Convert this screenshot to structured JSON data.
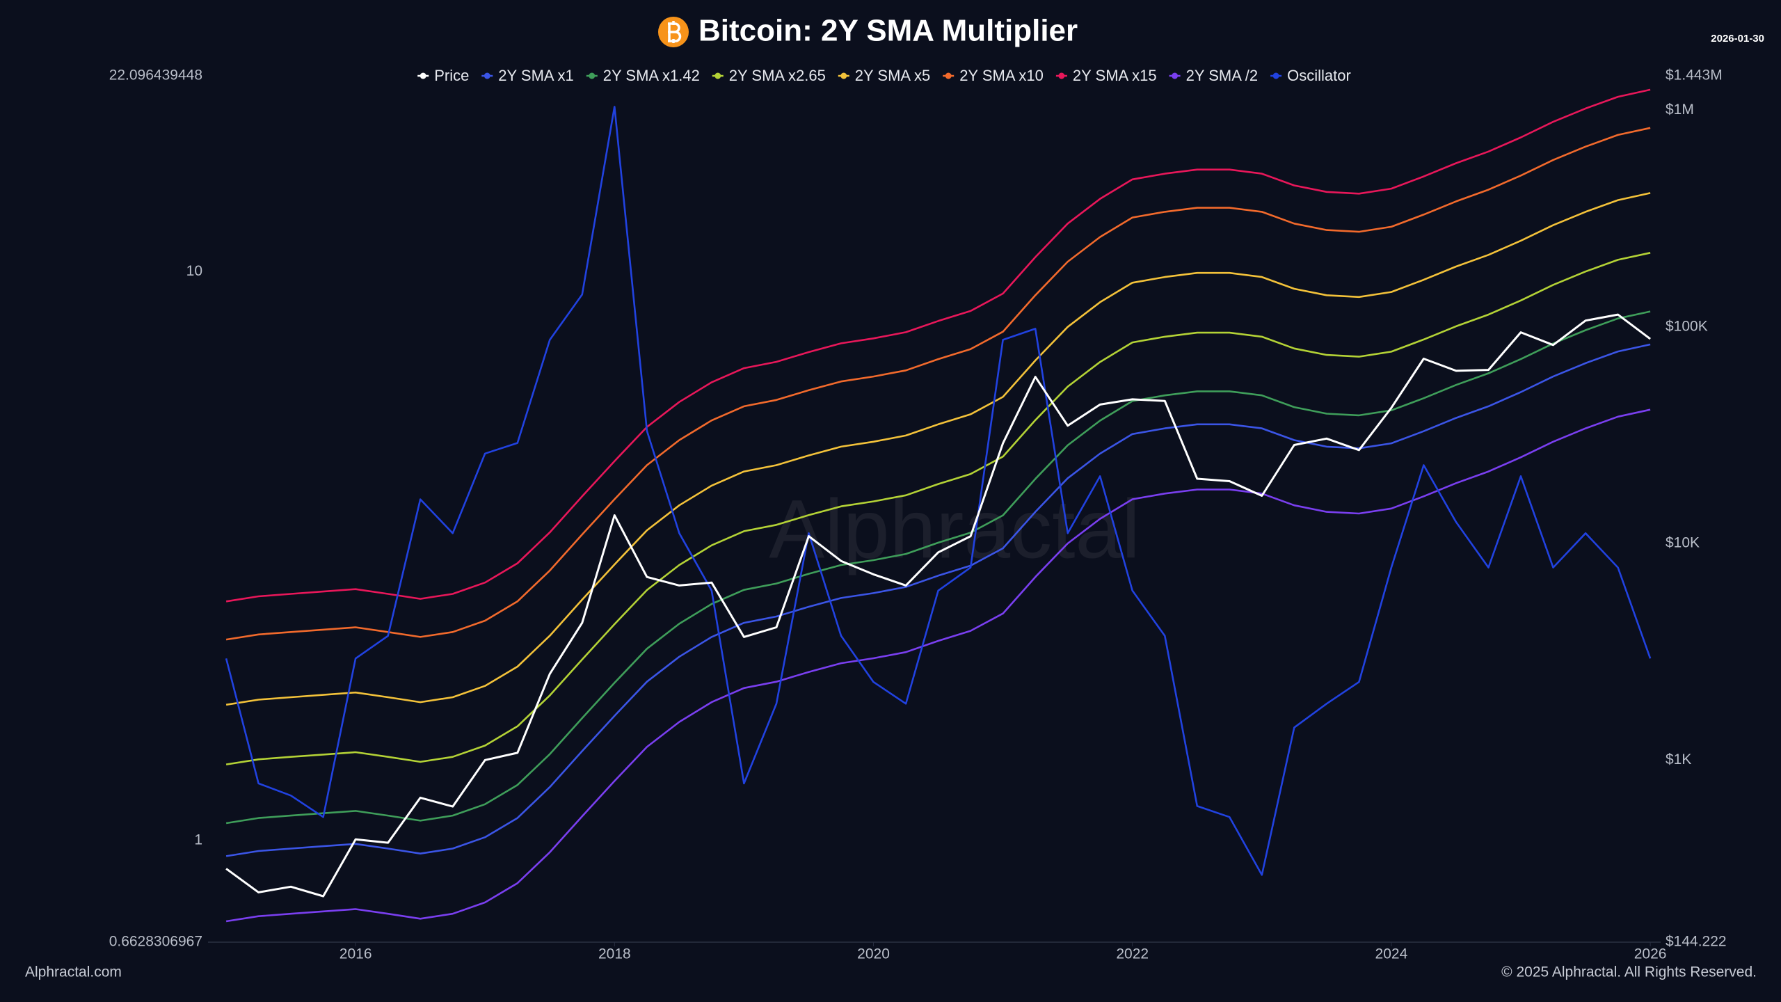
{
  "chart_data": {
    "type": "line",
    "title": "Bitcoin: 2Y SMA Multiplier",
    "date": "2026-01-30",
    "watermark": "Alphractal",
    "source": "Alphractal.com",
    "copyright": "© 2025 Alphractal. All Rights Reserved.",
    "yscale": "log",
    "y2scale": "log",
    "grid": false,
    "legend": "top",
    "background": "#0b0f1d",
    "x": [
      2015.0,
      2015.25,
      2015.5,
      2015.75,
      2016.0,
      2016.25,
      2016.5,
      2016.75,
      2017.0,
      2017.25,
      2017.5,
      2017.75,
      2018.0,
      2018.25,
      2018.5,
      2018.75,
      2019.0,
      2019.25,
      2019.5,
      2019.75,
      2020.0,
      2020.25,
      2020.5,
      2020.75,
      2021.0,
      2021.25,
      2021.5,
      2021.75,
      2022.0,
      2022.25,
      2022.5,
      2022.75,
      2023.0,
      2023.25,
      2023.5,
      2023.75,
      2024.0,
      2024.25,
      2024.5,
      2024.75,
      2025.0,
      2025.25,
      2025.5,
      2025.75,
      2026.0
    ],
    "xlim": [
      2014.86,
      2026.08
    ],
    "xticks": [
      2016,
      2018,
      2020,
      2022,
      2024,
      2026
    ],
    "ylim": [
      0.6628306967,
      22.096439448
    ],
    "yticks": [
      0.6628306967,
      1,
      10,
      22.096439448
    ],
    "y2lim": [
      144.222,
      1443000
    ],
    "y2ticks": [
      {
        "value": 144.222,
        "label": "$144.222"
      },
      {
        "value": 1000,
        "label": "$1K"
      },
      {
        "value": 10000,
        "label": "$10K"
      },
      {
        "value": 100000,
        "label": "$100K"
      },
      {
        "value": 1000000,
        "label": "$1M"
      },
      {
        "value": 1443000,
        "label": "$1.443M"
      }
    ],
    "series": [
      {
        "name": "Price",
        "color": "#ffffff",
        "axis": "y2",
        "values": [
          315,
          245,
          260,
          235,
          430,
          415,
          670,
          610,
          1000,
          1080,
          2500,
          4300,
          13500,
          7000,
          6400,
          6600,
          3700,
          4100,
          10800,
          8300,
          7200,
          6400,
          9100,
          10800,
          29000,
          58800,
          35000,
          43800,
          46300,
          45500,
          19900,
          19400,
          16600,
          28500,
          30500,
          27000,
          42300,
          71300,
          62700,
          63300,
          94400,
          82500,
          107000,
          114000,
          88000
        ]
      },
      {
        "name": "2Y SMA x1",
        "color": "#3b55e6",
        "axis": "y2",
        "values": [
          360,
          380,
          390,
          400,
          410,
          390,
          370,
          390,
          440,
          540,
          750,
          1100,
          1600,
          2300,
          3000,
          3700,
          4300,
          4600,
          5100,
          5600,
          5900,
          6300,
          7100,
          7900,
          9500,
          14000,
          20000,
          26000,
          32000,
          34000,
          35500,
          35500,
          34000,
          30000,
          28000,
          27500,
          29000,
          33000,
          38000,
          43000,
          50000,
          59000,
          68000,
          77000,
          83000
        ]
      },
      {
        "name": "2Y SMA x1.42",
        "color": "#3f9e5a",
        "axis": "y2",
        "values": [
          511,
          540,
          554,
          568,
          582,
          554,
          525,
          554,
          625,
          767,
          1065,
          1562,
          2272,
          3266,
          4260,
          5254,
          6106,
          6532,
          7242,
          7952,
          8378,
          8946,
          10082,
          11218,
          13490,
          19880,
          28400,
          36920,
          45440,
          48280,
          50410,
          50410,
          48280,
          42600,
          39760,
          39050,
          41180,
          46860,
          53960,
          61060,
          71000,
          83780,
          96560,
          109340,
          117860
        ]
      },
      {
        "name": "2Y SMA x2.65",
        "color": "#b4d236",
        "axis": "y2",
        "values": [
          954,
          1007,
          1034,
          1060,
          1087,
          1034,
          981,
          1034,
          1166,
          1431,
          1988,
          2915,
          4240,
          6095,
          7950,
          9805,
          11395,
          12190,
          13515,
          14840,
          15635,
          16695,
          18815,
          20935,
          25175,
          37100,
          53000,
          68900,
          84800,
          90100,
          94075,
          94075,
          90100,
          79500,
          74200,
          72875,
          76850,
          87450,
          100700,
          113950,
          132500,
          156350,
          180200,
          204050,
          219950
        ]
      },
      {
        "name": "2Y SMA x5",
        "color": "#f3c23a",
        "axis": "y2",
        "values": [
          1800,
          1900,
          1950,
          2000,
          2050,
          1950,
          1850,
          1950,
          2200,
          2700,
          3750,
          5500,
          8000,
          11500,
          15000,
          18500,
          21500,
          23000,
          25500,
          28000,
          29500,
          31500,
          35500,
          39500,
          47500,
          70000,
          100000,
          130000,
          160000,
          170000,
          177500,
          177500,
          170000,
          150000,
          140000,
          137500,
          145000,
          165000,
          190000,
          215000,
          250000,
          295000,
          340000,
          385000,
          415000
        ]
      },
      {
        "name": "2Y SMA x10",
        "color": "#f26a2c",
        "axis": "y2",
        "values": [
          3600,
          3800,
          3900,
          4000,
          4100,
          3900,
          3700,
          3900,
          4400,
          5400,
          7500,
          11000,
          16000,
          23000,
          30000,
          37000,
          43000,
          46000,
          51000,
          56000,
          59000,
          63000,
          71000,
          79000,
          95000,
          140000,
          200000,
          260000,
          320000,
          340000,
          355000,
          355000,
          340000,
          300000,
          280000,
          275000,
          290000,
          330000,
          380000,
          430000,
          500000,
          590000,
          680000,
          770000,
          830000
        ]
      },
      {
        "name": "2Y SMA x15",
        "color": "#e8175a",
        "axis": "y2",
        "values": [
          5400,
          5700,
          5850,
          6000,
          6150,
          5850,
          5550,
          5850,
          6600,
          8100,
          11250,
          16500,
          24000,
          34500,
          45000,
          55500,
          64500,
          69000,
          76500,
          84000,
          88500,
          94500,
          106500,
          118500,
          142500,
          210000,
          300000,
          390000,
          480000,
          510000,
          532500,
          532500,
          510000,
          450000,
          420000,
          412500,
          435000,
          495000,
          570000,
          645000,
          750000,
          885000,
          1020000,
          1155000,
          1245000
        ]
      },
      {
        "name": "2Y SMA /2",
        "color": "#7a3ff0",
        "axis": "y2",
        "values": [
          180,
          190,
          195,
          200,
          205,
          195,
          185,
          195,
          220,
          270,
          375,
          550,
          800,
          1150,
          1500,
          1850,
          2150,
          2300,
          2550,
          2800,
          2950,
          3150,
          3550,
          3950,
          4750,
          7000,
          10000,
          13000,
          16000,
          17000,
          17750,
          17750,
          17000,
          15000,
          14000,
          13750,
          14500,
          16500,
          19000,
          21500,
          25000,
          29500,
          34000,
          38500,
          41500
        ]
      },
      {
        "name": "Oscillator",
        "color": "#2142e0",
        "axis": "y",
        "values": [
          2.09,
          1.26,
          1.2,
          1.1,
          2.09,
          2.29,
          3.98,
          3.47,
          4.79,
          5.0,
          7.59,
          9.12,
          19.5,
          5.25,
          3.47,
          2.75,
          1.26,
          1.74,
          3.47,
          2.29,
          1.9,
          1.74,
          2.75,
          3.02,
          7.59,
          7.94,
          3.47,
          4.37,
          2.75,
          2.29,
          1.15,
          1.1,
          0.87,
          1.58,
          1.74,
          1.9,
          3.02,
          4.57,
          3.63,
          3.02,
          4.37,
          3.02,
          3.47,
          3.02,
          2.09
        ]
      }
    ]
  }
}
